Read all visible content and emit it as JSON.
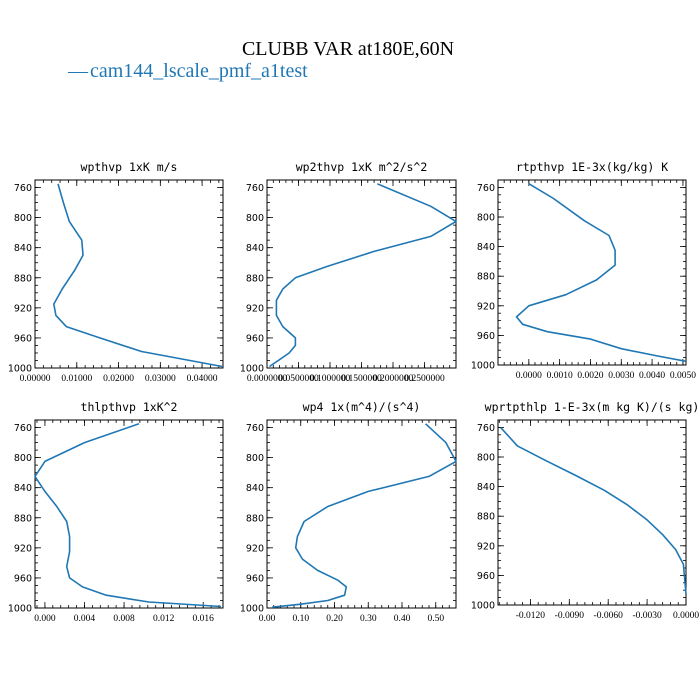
{
  "figure": {
    "title": "CLUBB VAR at180E,60N",
    "legend": {
      "dash": "—",
      "label": "cam144_lscale_pmf_a1test"
    },
    "line_color": "#1f77b4"
  },
  "chart_data": [
    {
      "type": "line",
      "title": "wpthvp  1xK m/s",
      "xlim": [
        0,
        0.045
      ],
      "ylim": [
        1000,
        750
      ],
      "xticks": [
        0,
        0.01,
        0.02,
        0.03,
        0.04
      ],
      "xticklabels": [
        "0.00000",
        "0.01000",
        "0.02000",
        "0.03000",
        "0.04000"
      ],
      "yticks": [
        760,
        800,
        840,
        880,
        920,
        960,
        1000
      ],
      "yticklabels": [
        "760",
        "800",
        "840",
        "880",
        "920",
        "960",
        "1000"
      ],
      "series": [
        {
          "x": [
            0.0055,
            0.0068,
            0.0082,
            0.0112,
            0.0115,
            0.0095,
            0.0065,
            0.0045,
            0.005,
            0.0075,
            0.0155,
            0.0255,
            0.0448
          ],
          "y": [
            755,
            780,
            805,
            830,
            850,
            870,
            895,
            915,
            930,
            945,
            960,
            978,
            998
          ]
        }
      ]
    },
    {
      "type": "line",
      "title": "wp2thvp  1xK m^2/s^2",
      "xlim": [
        0,
        0.3
      ],
      "ylim": [
        1000,
        750
      ],
      "xticks": [
        0,
        0.05,
        0.1,
        0.15,
        0.2,
        0.25
      ],
      "xticklabels": [
        "0.0000000",
        "0.0500000",
        "0.1000000",
        "0.1500000",
        "0.2000000",
        "0.2500000"
      ],
      "yticks": [
        760,
        800,
        840,
        880,
        920,
        960,
        1000
      ],
      "yticklabels": [
        "760",
        "800",
        "840",
        "880",
        "920",
        "960",
        "1000"
      ],
      "series": [
        {
          "x": [
            0.175,
            0.26,
            0.3,
            0.26,
            0.17,
            0.095,
            0.045,
            0.025,
            0.015,
            0.015,
            0.025,
            0.045,
            0.045,
            0.035,
            0.018,
            0.004
          ],
          "y": [
            755,
            785,
            805,
            825,
            845,
            865,
            880,
            895,
            910,
            930,
            945,
            960,
            970,
            980,
            990,
            998
          ]
        }
      ]
    },
    {
      "type": "line",
      "title": "rtpthvp  1E-3x(kg/kg) K",
      "xlim": [
        -0.001,
        0.0051
      ],
      "ylim": [
        1000,
        750
      ],
      "xticks": [
        0,
        0.001,
        0.002,
        0.003,
        0.004,
        0.005
      ],
      "xticklabels": [
        "0.0000",
        "0.0010",
        "0.0020",
        "0.0030",
        "0.0040",
        "0.0050"
      ],
      "yticks": [
        760,
        800,
        840,
        880,
        920,
        960,
        1000
      ],
      "yticklabels": [
        "760",
        "800",
        "840",
        "880",
        "920",
        "960",
        "1000"
      ],
      "series": [
        {
          "x": [
            0.0,
            0.0008,
            0.0018,
            0.0026,
            0.0028,
            0.0028,
            0.0022,
            0.0012,
            0.0,
            -0.0004,
            -0.0002,
            0.0006,
            0.002,
            0.003,
            0.0042,
            0.0051
          ],
          "y": [
            755,
            775,
            805,
            825,
            845,
            865,
            885,
            905,
            920,
            935,
            945,
            955,
            965,
            978,
            988,
            995
          ]
        }
      ]
    },
    {
      "type": "line",
      "title": "thlpthvp  1xK^2",
      "xlim": [
        -0.001,
        0.018
      ],
      "ylim": [
        1000,
        750
      ],
      "xticks": [
        0,
        0.004,
        0.008,
        0.012,
        0.016
      ],
      "xticklabels": [
        "0.000",
        "0.004",
        "0.008",
        "0.012",
        "0.016"
      ],
      "yticks": [
        760,
        800,
        840,
        880,
        920,
        960,
        1000
      ],
      "yticklabels": [
        "760",
        "800",
        "840",
        "880",
        "920",
        "960",
        "1000"
      ],
      "series": [
        {
          "x": [
            0.0095,
            0.004,
            0.0,
            -0.001,
            0.0,
            0.0012,
            0.0022,
            0.0025,
            0.0025,
            0.0022,
            0.0025,
            0.0038,
            0.0062,
            0.0105,
            0.0178
          ],
          "y": [
            755,
            780,
            805,
            825,
            845,
            865,
            885,
            905,
            925,
            945,
            960,
            972,
            983,
            992,
            998
          ]
        }
      ]
    },
    {
      "type": "line",
      "title": "wp4  1x(m^4)/(s^4)",
      "xlim": [
        0,
        0.56
      ],
      "ylim": [
        1000,
        750
      ],
      "xticks": [
        0,
        0.1,
        0.2,
        0.3,
        0.4,
        0.5
      ],
      "xticklabels": [
        "0.00",
        "0.10",
        "0.20",
        "0.30",
        "0.40",
        "0.50"
      ],
      "yticks": [
        760,
        800,
        840,
        880,
        920,
        960,
        1000
      ],
      "yticklabels": [
        "760",
        "800",
        "840",
        "880",
        "920",
        "960",
        "1000"
      ],
      "series": [
        {
          "x": [
            0.47,
            0.53,
            0.56,
            0.48,
            0.3,
            0.18,
            0.11,
            0.09,
            0.085,
            0.105,
            0.15,
            0.21,
            0.235,
            0.23,
            0.18,
            0.1,
            0.015
          ],
          "y": [
            755,
            780,
            805,
            825,
            845,
            865,
            885,
            905,
            920,
            935,
            950,
            963,
            972,
            983,
            990,
            995,
            999
          ]
        }
      ]
    },
    {
      "type": "line",
      "title": "wprtpthlp  1-E-3x(m kg K)/(s kg)",
      "xlim": [
        -0.0145,
        0
      ],
      "ylim": [
        1000,
        750
      ],
      "xticks": [
        -0.012,
        -0.009,
        -0.006,
        -0.003,
        0
      ],
      "xticklabels": [
        "-0.0120",
        "-0.0090",
        "-0.0060",
        "-0.0030",
        "0.0000"
      ],
      "yticks": [
        760,
        800,
        840,
        880,
        920,
        960,
        1000
      ],
      "yticklabels": [
        "760",
        "800",
        "840",
        "880",
        "920",
        "960",
        "1000"
      ],
      "series": [
        {
          "x": [
            -0.0143,
            -0.013,
            -0.0108,
            -0.0085,
            -0.0063,
            -0.0045,
            -0.003,
            -0.0018,
            -0.0008,
            -0.0002,
            0.0
          ],
          "y": [
            760,
            785,
            805,
            825,
            845,
            865,
            885,
            905,
            925,
            945,
            985
          ]
        }
      ]
    }
  ]
}
